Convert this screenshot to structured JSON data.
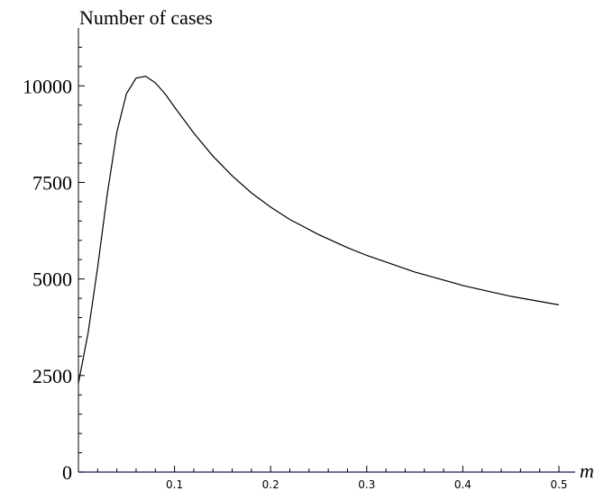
{
  "chart_data": {
    "type": "line",
    "title": "",
    "xlabel": "m",
    "ylabel": "Number of cases",
    "xlim": [
      0,
      0.5
    ],
    "ylim": [
      0,
      11500
    ],
    "grid": false,
    "x_ticks": [
      "0.1",
      "0.2",
      "0.3",
      "0.4",
      "0.5"
    ],
    "y_ticks": [
      "0",
      "2500",
      "5000",
      "7500",
      "10000"
    ],
    "colors": {
      "line": "#000000",
      "x_axis": "#1a1a5e",
      "axes": "#000000"
    },
    "series": [
      {
        "x": [
          0.0,
          0.01,
          0.02,
          0.03,
          0.04,
          0.05,
          0.06,
          0.07,
          0.08,
          0.09,
          0.1,
          0.12,
          0.14,
          0.16,
          0.18,
          0.2,
          0.22,
          0.25,
          0.28,
          0.3,
          0.35,
          0.4,
          0.45,
          0.5
        ],
        "y": [
          2300,
          3600,
          5300,
          7200,
          8800,
          9800,
          10200,
          10250,
          10080,
          9800,
          9450,
          8780,
          8180,
          7670,
          7230,
          6860,
          6540,
          6150,
          5810,
          5610,
          5180,
          4830,
          4550,
          4330
        ]
      }
    ]
  }
}
